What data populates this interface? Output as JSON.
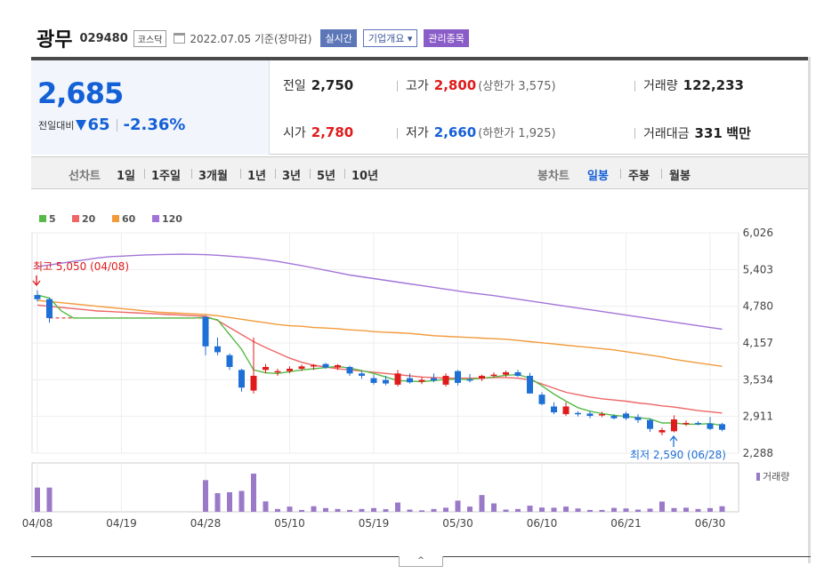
{
  "header": {
    "name": "광무",
    "code": "029480",
    "market": "코스닥",
    "date": "2022.07.05 기준(장마감)",
    "badge_realtime": "실시간",
    "badge_company": "기업개요 ▾",
    "badge_managed": "관리종목"
  },
  "quote": {
    "price": "2,685",
    "change_label": "전일대비",
    "change": "65",
    "change_pct": "-2.36%",
    "prev_label": "전일",
    "prev": "2,750",
    "high_label": "고가",
    "high": "2,800",
    "upper_limit": "(상한가 3,575)",
    "volume_label": "거래량",
    "volume": "122,233",
    "open_label": "시가",
    "open": "2,780",
    "low_label": "저가",
    "low": "2,660",
    "lower_limit": "(하한가 1,925)",
    "amount_label": "거래대금",
    "amount": "331",
    "amount_unit": "백만"
  },
  "tabs": {
    "line_label": "선차트",
    "line_tabs": [
      "1일",
      "1주일",
      "3개월",
      "1년",
      "3년",
      "5년",
      "10년"
    ],
    "candle_label": "봉차트",
    "candle_tabs": [
      "일봉",
      "주봉",
      "월봉"
    ],
    "active_candle": "일봉"
  },
  "colors": {
    "up": "#e01b1b",
    "down": "#1e6fd6",
    "ma5": "#55bb44",
    "ma20": "#ee6666",
    "ma60": "#f29a3a",
    "ma120": "#a374d8",
    "volume": "#9a7ac8"
  },
  "chart_data": {
    "type": "candlestick",
    "legend": [
      "5",
      "20",
      "60",
      "120"
    ],
    "y_ticks": [
      "6,026",
      "5,403",
      "4,780",
      "4,157",
      "3,534",
      "2,911",
      "2,288"
    ],
    "ylim": [
      2288,
      6026
    ],
    "x_tick_labels": [
      "04/08",
      "04/19",
      "04/28",
      "05/10",
      "05/19",
      "05/30",
      "06/10",
      "06/21",
      "06/30"
    ],
    "x_tick_index": [
      0,
      7,
      14,
      21,
      28,
      35,
      42,
      49,
      56
    ],
    "high_annotation": "최고 5,050 (04/08)",
    "low_annotation": "최저 2,590 (06/28)",
    "volume_label": "거래량",
    "candles": [
      [
        4970,
        5050,
        4860,
        4900
      ],
      [
        4900,
        4920,
        4500,
        4580
      ],
      [
        4580,
        4600,
        4560,
        4580
      ],
      [
        4580,
        4590,
        4570,
        4580
      ],
      [
        4580,
        4590,
        4570,
        4580
      ],
      [
        4580,
        4590,
        4570,
        4580
      ],
      [
        4580,
        4590,
        4570,
        4580
      ],
      [
        4580,
        4590,
        4570,
        4580
      ],
      [
        4580,
        4590,
        4570,
        4580
      ],
      [
        4580,
        4590,
        4570,
        4580
      ],
      [
        4580,
        4590,
        4570,
        4580
      ],
      [
        4580,
        4590,
        4570,
        4580
      ],
      [
        4580,
        4590,
        4570,
        4580
      ],
      [
        4580,
        4590,
        4570,
        4580
      ],
      [
        4600,
        4620,
        3950,
        4100
      ],
      [
        4100,
        4250,
        3950,
        4000
      ],
      [
        3950,
        3980,
        3700,
        3750
      ],
      [
        3700,
        3720,
        3330,
        3400
      ],
      [
        3350,
        4250,
        3300,
        3600
      ],
      [
        3700,
        3800,
        3640,
        3750
      ],
      [
        3660,
        3720,
        3600,
        3680
      ],
      [
        3680,
        3760,
        3640,
        3720
      ],
      [
        3720,
        3790,
        3680,
        3760
      ],
      [
        3760,
        3800,
        3700,
        3780
      ],
      [
        3800,
        3820,
        3720,
        3740
      ],
      [
        3740,
        3800,
        3700,
        3780
      ],
      [
        3750,
        3770,
        3600,
        3640
      ],
      [
        3640,
        3680,
        3550,
        3600
      ],
      [
        3560,
        3620,
        3450,
        3480
      ],
      [
        3530,
        3600,
        3440,
        3470
      ],
      [
        3450,
        3700,
        3420,
        3640
      ],
      [
        3560,
        3640,
        3470,
        3490
      ],
      [
        3500,
        3580,
        3460,
        3530
      ],
      [
        3560,
        3640,
        3490,
        3520
      ],
      [
        3450,
        3640,
        3420,
        3600
      ],
      [
        3680,
        3700,
        3440,
        3480
      ],
      [
        3540,
        3630,
        3490,
        3520
      ],
      [
        3550,
        3620,
        3510,
        3600
      ],
      [
        3600,
        3660,
        3570,
        3620
      ],
      [
        3620,
        3690,
        3580,
        3660
      ],
      [
        3660,
        3700,
        3580,
        3600
      ],
      [
        3600,
        3650,
        3300,
        3300
      ],
      [
        3280,
        3320,
        3100,
        3120
      ],
      [
        3080,
        3150,
        2950,
        2980
      ],
      [
        2950,
        3150,
        2920,
        3080
      ],
      [
        2970,
        3000,
        2910,
        2950
      ],
      [
        2960,
        3000,
        2880,
        2920
      ],
      [
        2930,
        2990,
        2900,
        2950
      ],
      [
        2920,
        2950,
        2860,
        2880
      ],
      [
        2960,
        2990,
        2850,
        2880
      ],
      [
        2900,
        2950,
        2800,
        2850
      ],
      [
        2850,
        2880,
        2650,
        2700
      ],
      [
        2640,
        2720,
        2590,
        2680
      ],
      [
        2660,
        2930,
        2640,
        2860
      ],
      [
        2790,
        2840,
        2750,
        2800
      ],
      [
        2800,
        2830,
        2760,
        2780
      ],
      [
        2790,
        2900,
        2680,
        2700
      ],
      [
        2780,
        2800,
        2660,
        2685
      ]
    ],
    "volumes": [
      130,
      130,
      0,
      0,
      0,
      0,
      0,
      0,
      0,
      0,
      0,
      0,
      0,
      0,
      170,
      100,
      105,
      112,
      205,
      56,
      15,
      28,
      10,
      30,
      20,
      15,
      10,
      15,
      20,
      14,
      50,
      12,
      8,
      15,
      22,
      60,
      28,
      90,
      45,
      12,
      15,
      33,
      23,
      22,
      28,
      18,
      10,
      10,
      21,
      18,
      12,
      17,
      55,
      20,
      22,
      15,
      20,
      30
    ],
    "ma5": [
      4970,
      4920,
      4700,
      4580,
      4580,
      4580,
      4580,
      4580,
      4580,
      4580,
      4580,
      4580,
      4580,
      4580,
      4590,
      4550,
      4300,
      4050,
      3700,
      3650,
      3640,
      3670,
      3700,
      3720,
      3740,
      3760,
      3730,
      3690,
      3640,
      3580,
      3520,
      3510,
      3500,
      3520,
      3540,
      3540,
      3540,
      3560,
      3580,
      3610,
      3620,
      3560,
      3430,
      3290,
      3170,
      3060,
      3000,
      2960,
      2930,
      2910,
      2890,
      2870,
      2800,
      2800,
      2780,
      2780,
      2790,
      2760
    ],
    "ma20": [
      4800,
      4780,
      4760,
      4740,
      4720,
      4700,
      4690,
      4680,
      4670,
      4660,
      4650,
      4640,
      4630,
      4620,
      4610,
      4540,
      4420,
      4300,
      4180,
      4080,
      3990,
      3900,
      3830,
      3780,
      3750,
      3720,
      3700,
      3680,
      3660,
      3640,
      3620,
      3600,
      3580,
      3570,
      3560,
      3560,
      3560,
      3560,
      3570,
      3570,
      3560,
      3530,
      3460,
      3390,
      3320,
      3280,
      3240,
      3210,
      3190,
      3170,
      3140,
      3120,
      3090,
      3070,
      3040,
      3010,
      2990,
      2970
    ],
    "ma60": [
      4880,
      4860,
      4840,
      4820,
      4800,
      4780,
      4760,
      4740,
      4720,
      4700,
      4680,
      4670,
      4660,
      4650,
      4640,
      4620,
      4590,
      4560,
      4530,
      4500,
      4470,
      4450,
      4440,
      4420,
      4410,
      4400,
      4380,
      4370,
      4350,
      4340,
      4330,
      4320,
      4300,
      4280,
      4270,
      4260,
      4250,
      4240,
      4230,
      4220,
      4200,
      4180,
      4160,
      4140,
      4120,
      4100,
      4080,
      4060,
      4040,
      4010,
      3980,
      3950,
      3920,
      3880,
      3850,
      3820,
      3790,
      3760
    ],
    "ma120": [
      5450,
      5480,
      5510,
      5540,
      5570,
      5600,
      5620,
      5630,
      5640,
      5650,
      5655,
      5660,
      5662,
      5660,
      5655,
      5645,
      5630,
      5615,
      5595,
      5570,
      5540,
      5505,
      5470,
      5430,
      5390,
      5350,
      5310,
      5280,
      5250,
      5220,
      5190,
      5160,
      5130,
      5100,
      5070,
      5040,
      5010,
      4985,
      4960,
      4930,
      4900,
      4870,
      4840,
      4810,
      4780,
      4750,
      4720,
      4690,
      4660,
      4630,
      4600,
      4570,
      4540,
      4510,
      4480,
      4450,
      4420,
      4390
    ]
  }
}
